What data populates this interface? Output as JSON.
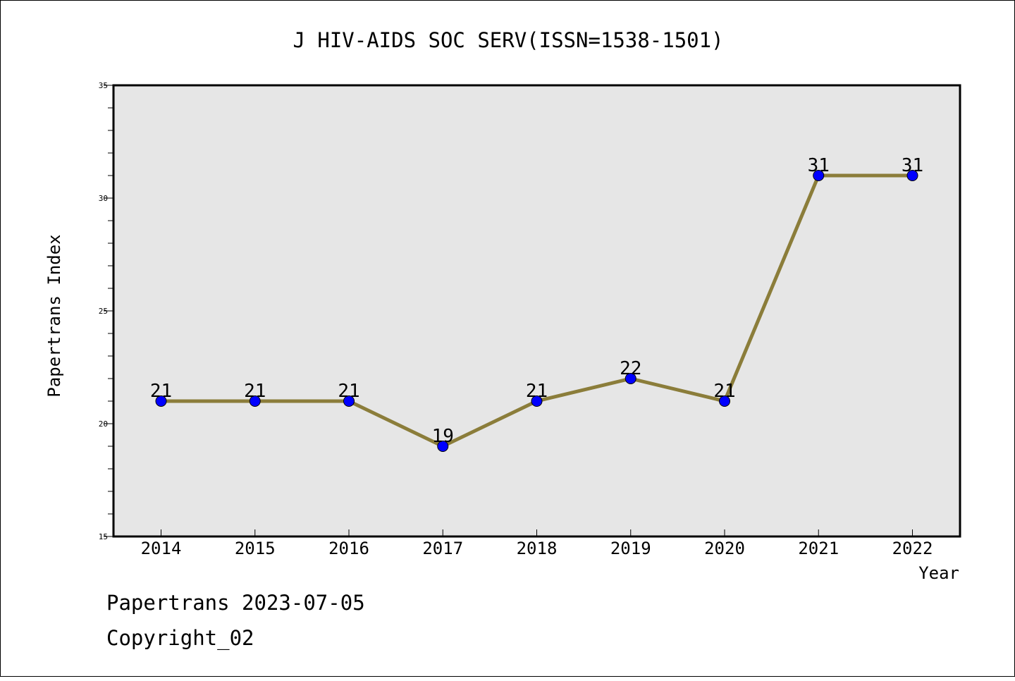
{
  "chart_data": {
    "type": "line",
    "title": "J HIV-AIDS SOC SERV(ISSN=1538-1501)",
    "xlabel": "Year",
    "ylabel": "Papertrans Index",
    "categories": [
      "2014",
      "2015",
      "2016",
      "2017",
      "2018",
      "2019",
      "2020",
      "2021",
      "2022"
    ],
    "series": [
      {
        "values": [
          21,
          21,
          21,
          19,
          21,
          22,
          21,
          31,
          31
        ],
        "line_color": "#8b7d3a",
        "marker_color": "#0000ff"
      }
    ],
    "data_labels": [
      "21",
      "21",
      "21",
      "19",
      "21",
      "22",
      "21",
      "31",
      "31"
    ],
    "ylim": [
      15,
      35
    ],
    "yticks": [
      15,
      20,
      25,
      30,
      35
    ],
    "ytick_labels": [
      "15",
      "20",
      "25",
      "30",
      "35"
    ],
    "plot_background": "#e6e6e6",
    "grid": false,
    "legend": "none"
  },
  "footer": {
    "line1": "Papertrans 2023-07-05",
    "line2": "Copyright_02"
  }
}
